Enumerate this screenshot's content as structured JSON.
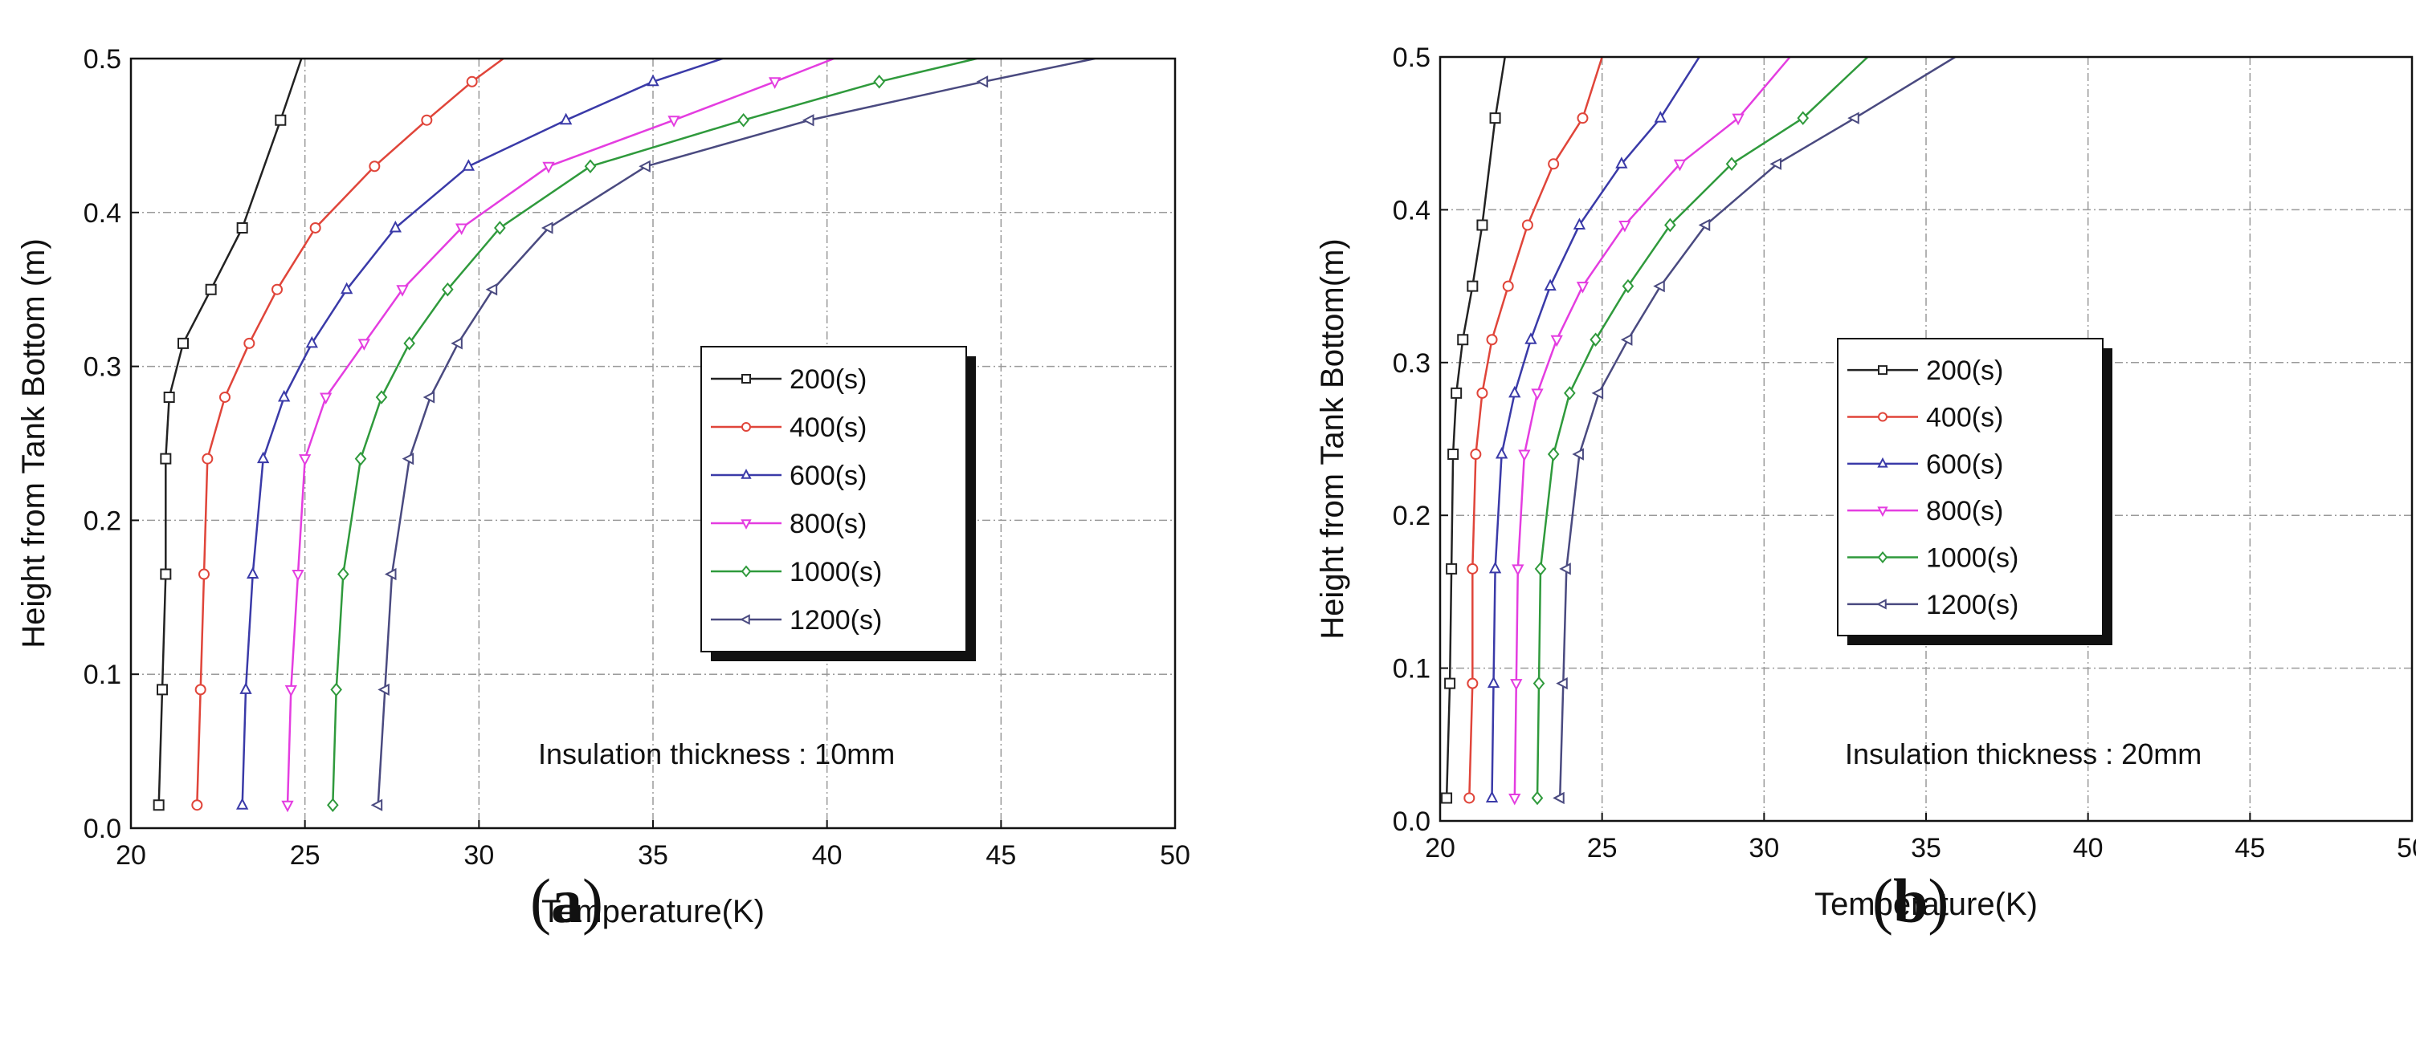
{
  "chart_data": [
    {
      "type": "line",
      "panel_label": "a",
      "xlabel": "Temperature(K)",
      "ylabel": "Height from Tank Bottom (m)",
      "xlim": [
        20,
        50
      ],
      "ylim": [
        0.0,
        0.5
      ],
      "xticks": [
        "20",
        "25",
        "30",
        "35",
        "40",
        "45",
        "50"
      ],
      "yticks": [
        "0.0",
        "0.1",
        "0.2",
        "0.3",
        "0.4",
        "0.5"
      ],
      "grid": true,
      "legend_position": "center-right",
      "annotation": "Insulation thickness : 10mm",
      "series": [
        {
          "name": "200(s)",
          "color": "#222222",
          "marker": "square",
          "x": [
            20.8,
            20.9,
            21.0,
            21.0,
            21.1,
            21.5,
            22.3,
            23.2,
            24.3,
            24.9
          ],
          "y": [
            0.015,
            0.09,
            0.165,
            0.24,
            0.28,
            0.315,
            0.35,
            0.39,
            0.46,
            0.5
          ]
        },
        {
          "name": "400(s)",
          "color": "#e0453a",
          "marker": "circle",
          "x": [
            21.9,
            22.0,
            22.1,
            22.2,
            22.7,
            23.4,
            24.2,
            25.3,
            27.0,
            28.5,
            29.8,
            30.7
          ],
          "y": [
            0.015,
            0.09,
            0.165,
            0.24,
            0.28,
            0.315,
            0.35,
            0.39,
            0.43,
            0.46,
            0.485,
            0.5
          ]
        },
        {
          "name": "600(s)",
          "color": "#3a3aa8",
          "marker": "triangle-up",
          "x": [
            23.2,
            23.3,
            23.5,
            23.8,
            24.4,
            25.2,
            26.2,
            27.6,
            29.7,
            32.5,
            35.0,
            37.0
          ],
          "y": [
            0.015,
            0.09,
            0.165,
            0.24,
            0.28,
            0.315,
            0.35,
            0.39,
            0.43,
            0.46,
            0.485,
            0.5
          ]
        },
        {
          "name": "800(s)",
          "color": "#e43de0",
          "marker": "triangle-down",
          "x": [
            24.5,
            24.6,
            24.8,
            25.0,
            25.6,
            26.7,
            27.8,
            29.5,
            32.0,
            35.6,
            38.5,
            40.2
          ],
          "y": [
            0.015,
            0.09,
            0.165,
            0.24,
            0.28,
            0.315,
            0.35,
            0.39,
            0.43,
            0.46,
            0.485,
            0.5
          ]
        },
        {
          "name": "1000(s)",
          "color": "#2f9a3c",
          "marker": "diamond",
          "x": [
            25.8,
            25.9,
            26.1,
            26.6,
            27.2,
            28.0,
            29.1,
            30.6,
            33.2,
            37.6,
            41.5,
            44.3
          ],
          "y": [
            0.015,
            0.09,
            0.165,
            0.24,
            0.28,
            0.315,
            0.35,
            0.39,
            0.43,
            0.46,
            0.485,
            0.5
          ]
        },
        {
          "name": "1200(s)",
          "color": "#4a4a80",
          "marker": "triangle-left",
          "x": [
            27.1,
            27.3,
            27.5,
            28.0,
            28.6,
            29.4,
            30.4,
            32.0,
            34.8,
            39.5,
            44.5,
            47.7
          ],
          "y": [
            0.015,
            0.09,
            0.165,
            0.24,
            0.28,
            0.315,
            0.35,
            0.39,
            0.43,
            0.46,
            0.485,
            0.5
          ]
        }
      ]
    },
    {
      "type": "line",
      "panel_label": "b",
      "xlabel": "Temperature(K)",
      "ylabel": "Height from Tank Bottom(m)",
      "xlim": [
        20,
        50
      ],
      "ylim": [
        0.0,
        0.5
      ],
      "xticks": [
        "20",
        "25",
        "30",
        "35",
        "40",
        "45",
        "50"
      ],
      "yticks": [
        "0.0",
        "0.1",
        "0.2",
        "0.3",
        "0.4",
        "0.5"
      ],
      "grid": true,
      "legend_position": "center-right",
      "annotation": "Insulation thickness : 20mm",
      "series": [
        {
          "name": "200(s)",
          "color": "#222222",
          "marker": "square",
          "x": [
            20.2,
            20.3,
            20.35,
            20.4,
            20.5,
            20.7,
            21.0,
            21.3,
            21.7,
            22.0
          ],
          "y": [
            0.015,
            0.09,
            0.165,
            0.24,
            0.28,
            0.315,
            0.35,
            0.39,
            0.46,
            0.5
          ]
        },
        {
          "name": "400(s)",
          "color": "#e0453a",
          "marker": "circle",
          "x": [
            20.9,
            21.0,
            21.0,
            21.1,
            21.3,
            21.6,
            22.1,
            22.7,
            23.5,
            24.4,
            25.0
          ],
          "y": [
            0.015,
            0.09,
            0.165,
            0.24,
            0.28,
            0.315,
            0.35,
            0.39,
            0.43,
            0.46,
            0.5
          ]
        },
        {
          "name": "600(s)",
          "color": "#3a3aa8",
          "marker": "triangle-up",
          "x": [
            21.6,
            21.65,
            21.7,
            21.9,
            22.3,
            22.8,
            23.4,
            24.3,
            25.6,
            26.8,
            28.0
          ],
          "y": [
            0.015,
            0.09,
            0.165,
            0.24,
            0.28,
            0.315,
            0.35,
            0.39,
            0.43,
            0.46,
            0.5
          ]
        },
        {
          "name": "800(s)",
          "color": "#e43de0",
          "marker": "triangle-down",
          "x": [
            22.3,
            22.35,
            22.4,
            22.6,
            23.0,
            23.6,
            24.4,
            25.7,
            27.4,
            29.2,
            30.8
          ],
          "y": [
            0.015,
            0.09,
            0.165,
            0.24,
            0.28,
            0.315,
            0.35,
            0.39,
            0.43,
            0.46,
            0.5
          ]
        },
        {
          "name": "1000(s)",
          "color": "#2f9a3c",
          "marker": "diamond",
          "x": [
            23.0,
            23.05,
            23.1,
            23.5,
            24.0,
            24.8,
            25.8,
            27.1,
            29.0,
            31.2,
            33.2
          ],
          "y": [
            0.015,
            0.09,
            0.165,
            0.24,
            0.28,
            0.315,
            0.35,
            0.39,
            0.43,
            0.46,
            0.5
          ]
        },
        {
          "name": "1200(s)",
          "color": "#4a4a80",
          "marker": "triangle-left",
          "x": [
            23.7,
            23.8,
            23.9,
            24.3,
            24.9,
            25.8,
            26.8,
            28.2,
            30.4,
            32.8,
            35.9
          ],
          "y": [
            0.015,
            0.09,
            0.165,
            0.24,
            0.28,
            0.315,
            0.35,
            0.39,
            0.43,
            0.46,
            0.5
          ]
        }
      ]
    }
  ]
}
